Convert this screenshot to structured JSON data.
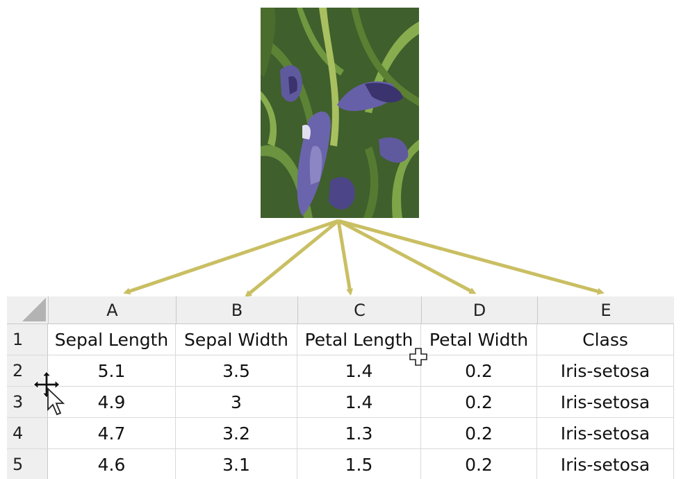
{
  "image": {
    "subject": "iris-flower-photo",
    "colors": {
      "foliage_dark": "#2f4a24",
      "foliage_light": "#7aa048",
      "petal": "#5f5a9e",
      "petal_dark": "#3b336e"
    }
  },
  "arrows": {
    "color": "#c9bf63",
    "targets": [
      "column-A",
      "column-B",
      "column-C",
      "column-D",
      "column-E"
    ]
  },
  "sheet": {
    "column_headers": [
      "A",
      "B",
      "C",
      "D",
      "E"
    ],
    "rows": [
      {
        "num": "1",
        "cells": [
          "Sepal Length",
          "Sepal Width",
          "Petal Length",
          "Petal Width",
          "Class"
        ]
      },
      {
        "num": "2",
        "cells": [
          "5.1",
          "3.5",
          "1.4",
          "0.2",
          "Iris-setosa"
        ]
      },
      {
        "num": "3",
        "cells": [
          "4.9",
          "3",
          "1.4",
          "0.2",
          "Iris-setosa"
        ]
      },
      {
        "num": "4",
        "cells": [
          "4.7",
          "3.2",
          "1.3",
          "0.2",
          "Iris-setosa"
        ]
      },
      {
        "num": "5",
        "cells": [
          "4.6",
          "3.1",
          "1.5",
          "0.2",
          "Iris-setosa"
        ]
      }
    ],
    "colors": {
      "header_bg": "#efefef",
      "gridline": "#d9d9d9",
      "corner": "#b3b3b3"
    }
  },
  "cursors": [
    "move-cursor-icon",
    "arrow-cursor-icon",
    "cell-select-cursor-icon"
  ]
}
